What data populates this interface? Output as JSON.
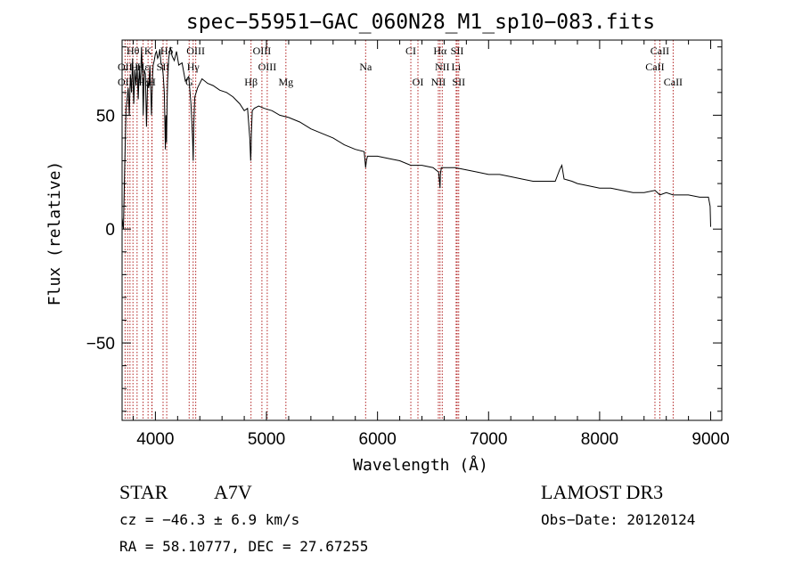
{
  "chart_data": {
    "type": "line",
    "title": "spec−55951−GAC_060N28_M1_sp10−083.fits",
    "xlabel": "Wavelength (Å)",
    "ylabel": "Flux (relative)",
    "xlim": [
      3700,
      9100
    ],
    "ylim": [
      -84,
      83
    ],
    "xticks": [
      4000,
      5000,
      6000,
      7000,
      8000,
      9000
    ],
    "xtick_labels": [
      "4000",
      "5000",
      "6000",
      "7000",
      "8000",
      "9000"
    ],
    "yticks": [
      50,
      0,
      -50
    ],
    "ytick_labels": [
      "50",
      "0",
      "−50"
    ],
    "series": [
      {
        "name": "flux",
        "x": [
          3700,
          3712,
          3725,
          3735,
          3745,
          3755,
          3765,
          3775,
          3785,
          3795,
          3805,
          3815,
          3825,
          3835,
          3845,
          3855,
          3865,
          3875,
          3885,
          3890,
          3900,
          3910,
          3920,
          3930,
          3940,
          3950,
          3960,
          3965,
          3970,
          3975,
          3980,
          3990,
          4000,
          4010,
          4020,
          4030,
          4040,
          4050,
          4060,
          4070,
          4080,
          4090,
          4095,
          4100,
          4105,
          4110,
          4120,
          4135,
          4150,
          4170,
          4190,
          4210,
          4240,
          4270,
          4300,
          4320,
          4335,
          4340,
          4345,
          4355,
          4380,
          4420,
          4470,
          4520,
          4580,
          4640,
          4700,
          4760,
          4800,
          4830,
          4850,
          4858,
          4861,
          4864,
          4872,
          4890,
          4930,
          4980,
          5050,
          5120,
          5200,
          5300,
          5400,
          5500,
          5600,
          5700,
          5800,
          5880,
          5893,
          5900,
          5910,
          6000,
          6100,
          6200,
          6300,
          6400,
          6500,
          6550,
          6560,
          6563,
          6566,
          6575,
          6600,
          6700,
          6800,
          6900,
          7000,
          7100,
          7200,
          7300,
          7400,
          7500,
          7600,
          7640,
          7660,
          7680,
          7750,
          7800,
          7900,
          8000,
          8100,
          8200,
          8300,
          8400,
          8498,
          8542,
          8600,
          8662,
          8700,
          8800,
          8900,
          8980,
          8995,
          9000
        ],
        "values": [
          5,
          0,
          30,
          52,
          57,
          62,
          50,
          68,
          60,
          75,
          55,
          70,
          63,
          72,
          57,
          70,
          63,
          80,
          65,
          50,
          70,
          68,
          45,
          65,
          62,
          72,
          58,
          50,
          60,
          68,
          72,
          74,
          77,
          78,
          75,
          76,
          79,
          73,
          72,
          68,
          60,
          35,
          50,
          38,
          55,
          65,
          75,
          80,
          76,
          74,
          78,
          72,
          73,
          65,
          67,
          55,
          40,
          30,
          45,
          58,
          62,
          66,
          64,
          63,
          61,
          60,
          58,
          55,
          52,
          53,
          40,
          30,
          34,
          42,
          52,
          53,
          54,
          53,
          52,
          50,
          49,
          47,
          44,
          42,
          40,
          37,
          35,
          34,
          27,
          30,
          32,
          32,
          31,
          30,
          28,
          28,
          27,
          25,
          20,
          18,
          24,
          27,
          27,
          27,
          26,
          25,
          24,
          24,
          23,
          22,
          21,
          21,
          21,
          26,
          28,
          22,
          21,
          20,
          19,
          18,
          18,
          17,
          16,
          16,
          17,
          15,
          16,
          15,
          15,
          15,
          14,
          14,
          10,
          1
        ]
      }
    ],
    "spectral_lines": [
      {
        "label": "Hθ",
        "wl": 3798,
        "row": 0
      },
      {
        "label": "K",
        "wl": 3934,
        "row": 0
      },
      {
        "label": "Hδ",
        "wl": 4102,
        "row": 0
      },
      {
        "label": "OIII",
        "wl": 4363,
        "row": 0
      },
      {
        "label": "OIII",
        "wl": 4959,
        "row": 0
      },
      {
        "label": "CI",
        "wl": 6300,
        "row": 0
      },
      {
        "label": "Hα",
        "wl": 6563,
        "row": 0
      },
      {
        "label": "SII",
        "wl": 6717,
        "row": 0
      },
      {
        "label": "CaII",
        "wl": 8542,
        "row": 0
      },
      {
        "label": "OII",
        "wl": 3727,
        "row": 1
      },
      {
        "label": "Hη",
        "wl": 3835,
        "row": 1
      },
      {
        "label": "Hε",
        "wl": 3889,
        "row": 1
      },
      {
        "label": "SII",
        "wl": 4069,
        "row": 1
      },
      {
        "label": "Hγ",
        "wl": 4340,
        "row": 1
      },
      {
        "label": "OIII",
        "wl": 5007,
        "row": 1
      },
      {
        "label": "Na",
        "wl": 5893,
        "row": 1
      },
      {
        "label": "NII",
        "wl": 6583,
        "row": 1
      },
      {
        "label": "Li",
        "wl": 6708,
        "row": 1
      },
      {
        "label": "CaII",
        "wl": 8498,
        "row": 1
      },
      {
        "label": "OII",
        "wl": 3727,
        "row": 2
      },
      {
        "label": "Hζ",
        "wl": 3889,
        "row": 2
      },
      {
        "label": "H",
        "wl": 3968,
        "row": 2
      },
      {
        "label": "G",
        "wl": 4304,
        "row": 2
      },
      {
        "label": "Hβ",
        "wl": 4861,
        "row": 2
      },
      {
        "label": "Mg",
        "wl": 5175,
        "row": 2
      },
      {
        "label": "OI",
        "wl": 6364,
        "row": 2
      },
      {
        "label": "NII",
        "wl": 6548,
        "row": 2
      },
      {
        "label": "SII",
        "wl": 6731,
        "row": 2
      },
      {
        "label": "CaII",
        "wl": 8662,
        "row": 2
      }
    ],
    "line_positions": [
      3727,
      3750,
      3771,
      3798,
      3835,
      3889,
      3934,
      3968,
      3970,
      4069,
      4102,
      4304,
      4340,
      4363,
      4861,
      4959,
      5007,
      5175,
      5893,
      6300,
      6364,
      6548,
      6563,
      6583,
      6708,
      6717,
      6731,
      8498,
      8542,
      8662
    ]
  },
  "footer": {
    "object_type": "STAR",
    "spectral_class": "A7V",
    "survey": "LAMOST DR3",
    "redshift": "cz = −46.3 ± 6.9 km/s",
    "obs_date": "Obs−Date: 20120124",
    "coords": "RA =  58.10777, DEC =  27.67255"
  }
}
